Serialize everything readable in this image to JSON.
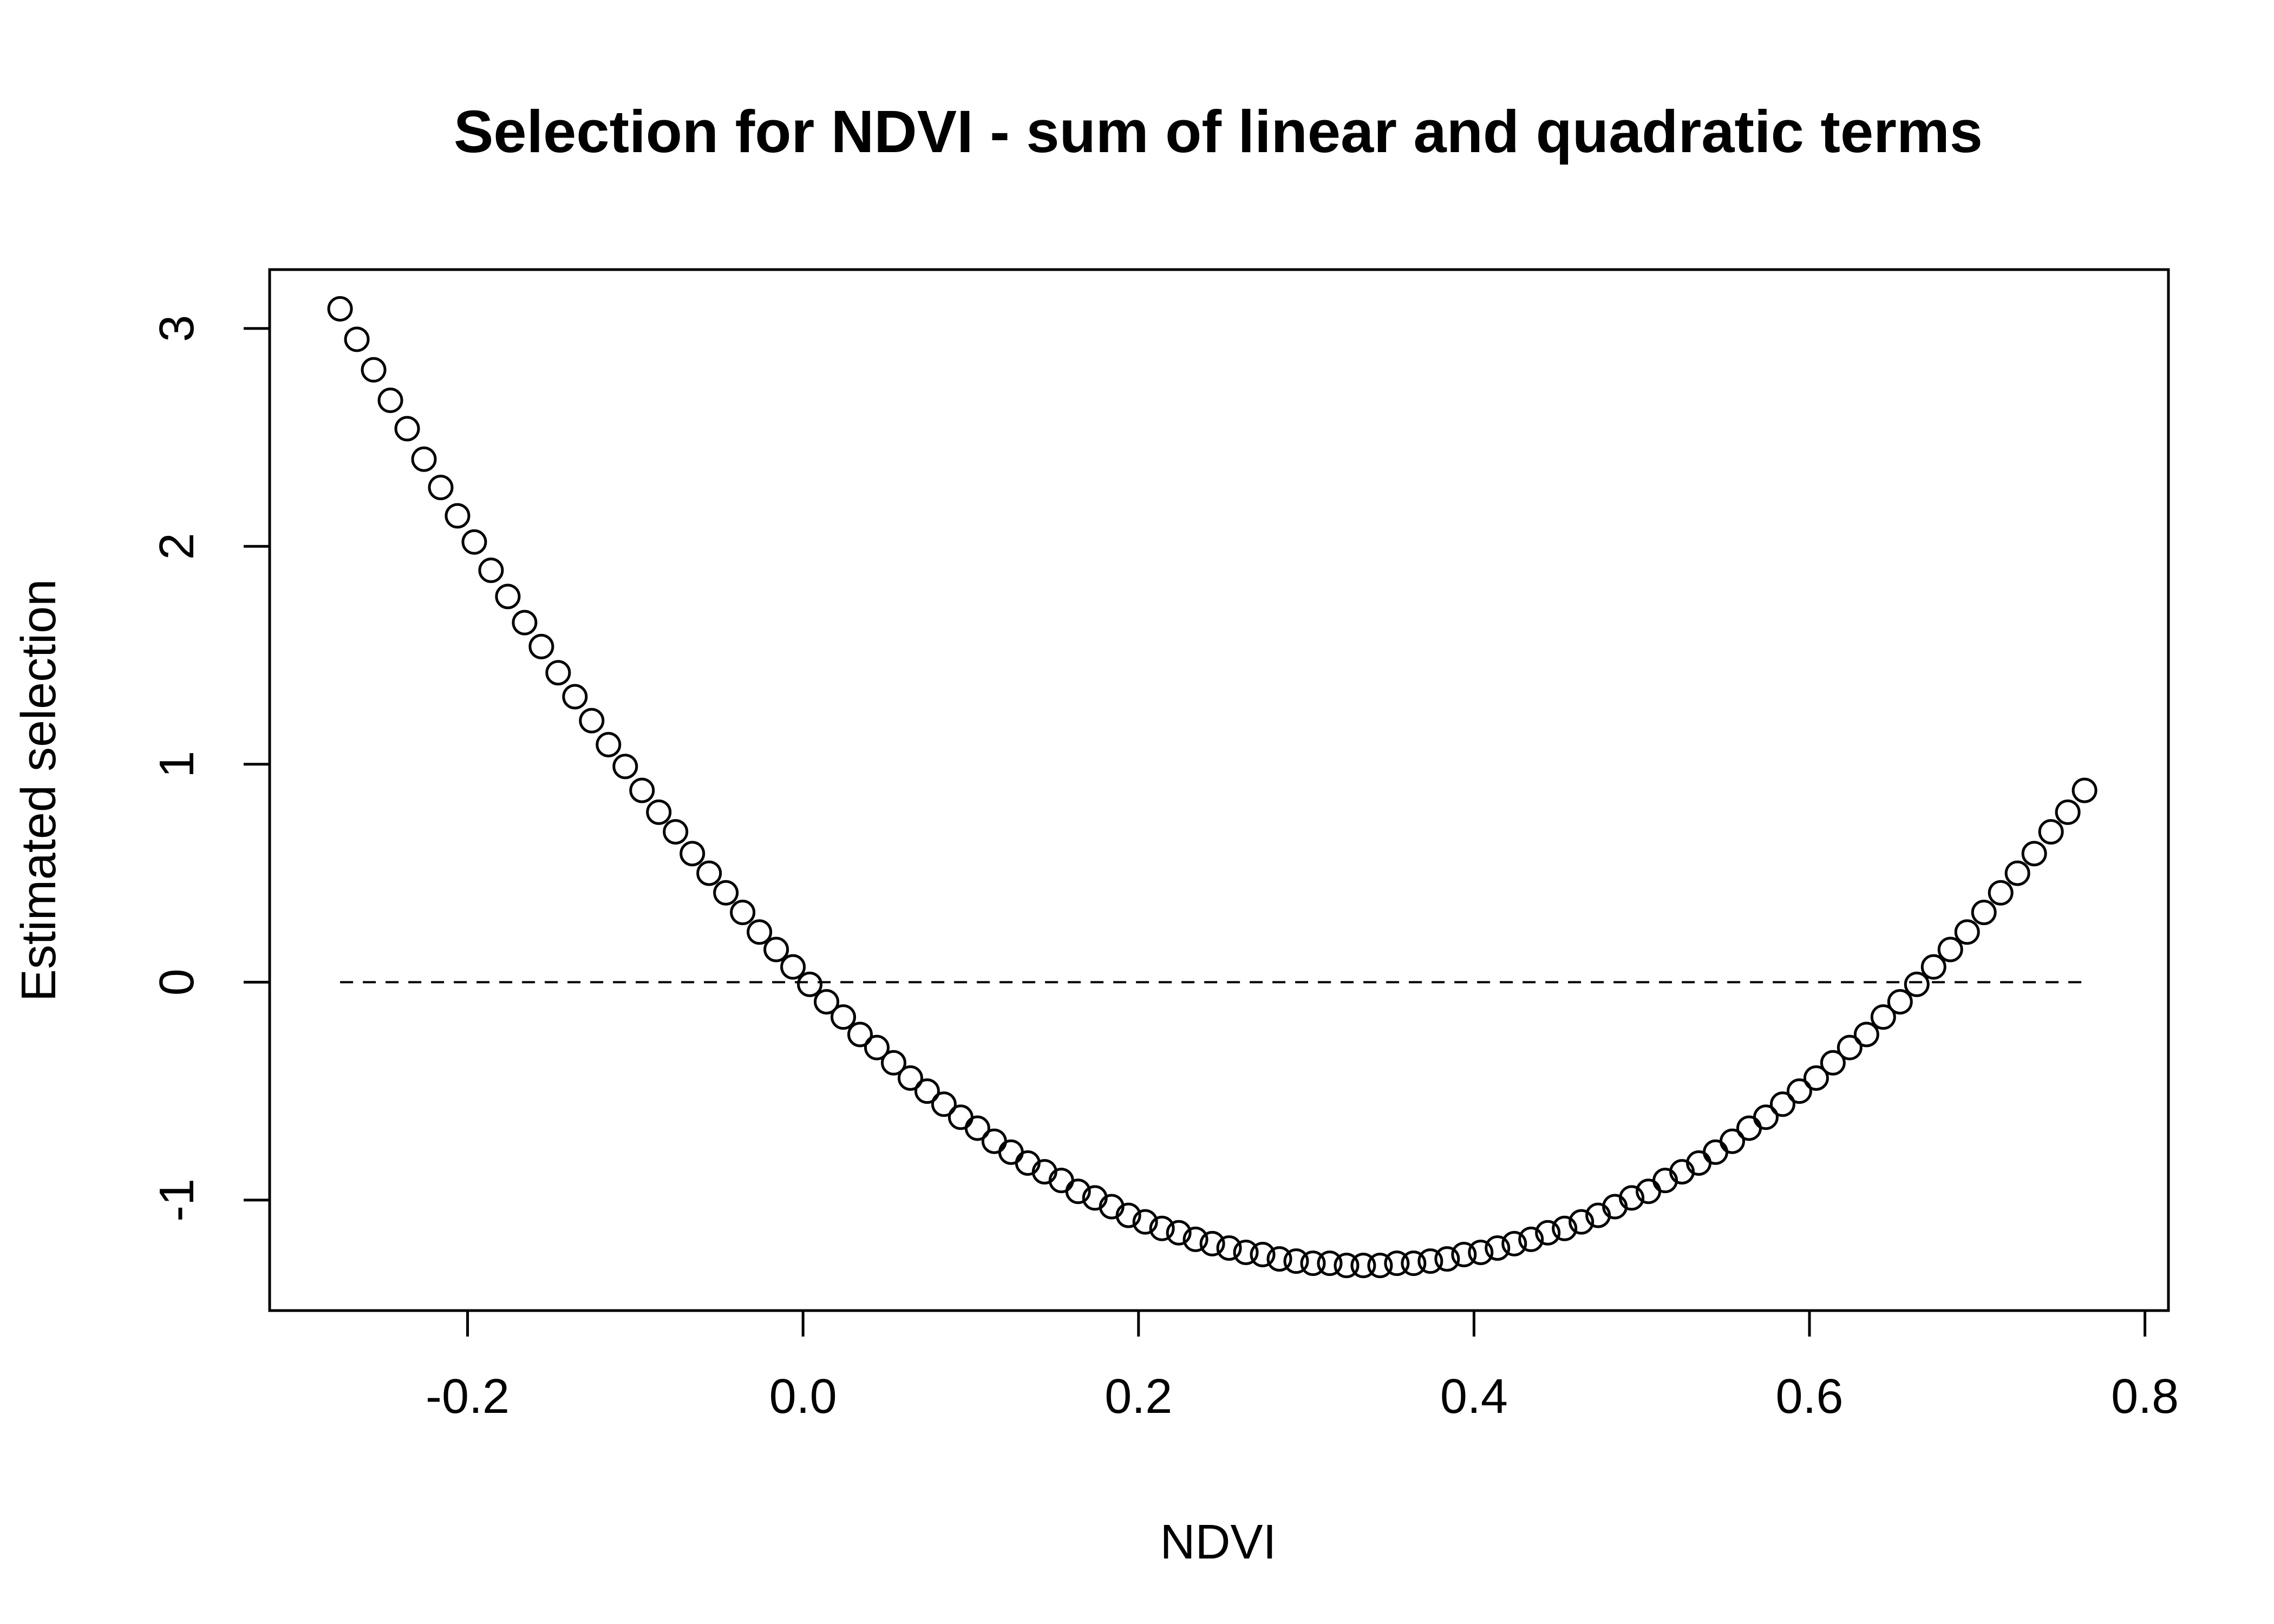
{
  "chart_data": {
    "type": "scatter",
    "title": "Selection for NDVI - sum of linear and quadratic terms",
    "x_label": "NDVI",
    "y_label": "Estimated selection",
    "series": [
      {
        "name": "Estimated selection",
        "color": "#000000",
        "marker": "open-circle",
        "x": [
          -0.276,
          -0.266,
          -0.256,
          -0.246,
          -0.236,
          -0.226,
          -0.216,
          -0.206,
          -0.196,
          -0.186,
          -0.176,
          -0.166,
          -0.156,
          -0.146,
          -0.136,
          -0.126,
          -0.116,
          -0.106,
          -0.096,
          -0.086,
          -0.076,
          -0.066,
          -0.056,
          -0.046,
          -0.036,
          -0.026,
          -0.016,
          -0.006,
          0.004,
          0.014,
          0.024,
          0.034,
          0.044,
          0.054,
          0.064,
          0.074,
          0.084,
          0.094,
          0.104,
          0.114,
          0.124,
          0.134,
          0.144,
          0.154,
          0.164,
          0.174,
          0.184,
          0.194,
          0.204,
          0.214,
          0.224,
          0.234,
          0.244,
          0.254,
          0.264,
          0.274,
          0.284,
          0.294,
          0.304,
          0.314,
          0.324,
          0.334,
          0.344,
          0.354,
          0.364,
          0.374,
          0.384,
          0.394,
          0.404,
          0.414,
          0.424,
          0.434,
          0.444,
          0.454,
          0.464,
          0.474,
          0.484,
          0.494,
          0.504,
          0.514,
          0.524,
          0.534,
          0.544,
          0.554,
          0.564,
          0.574,
          0.584,
          0.594,
          0.604,
          0.614,
          0.624,
          0.634,
          0.644,
          0.654,
          0.664,
          0.674,
          0.684,
          0.694,
          0.704,
          0.714,
          0.724,
          0.734,
          0.744,
          0.754,
          0.764
        ],
        "values": [
          3.09,
          2.95,
          2.81,
          2.67,
          2.54,
          2.4,
          2.27,
          2.14,
          2.02,
          1.89,
          1.77,
          1.65,
          1.54,
          1.42,
          1.31,
          1.2,
          1.09,
          0.99,
          0.88,
          0.78,
          0.69,
          0.59,
          0.5,
          0.41,
          0.32,
          0.23,
          0.15,
          0.07,
          -0.01,
          -0.09,
          -0.16,
          -0.24,
          -0.3,
          -0.37,
          -0.44,
          -0.5,
          -0.56,
          -0.62,
          -0.67,
          -0.73,
          -0.78,
          -0.83,
          -0.87,
          -0.91,
          -0.96,
          -0.99,
          -1.03,
          -1.07,
          -1.1,
          -1.13,
          -1.15,
          -1.18,
          -1.2,
          -1.22,
          -1.24,
          -1.25,
          -1.27,
          -1.28,
          -1.29,
          -1.29,
          -1.3,
          -1.3,
          -1.3,
          -1.29,
          -1.29,
          -1.28,
          -1.27,
          -1.25,
          -1.24,
          -1.22,
          -1.2,
          -1.18,
          -1.15,
          -1.13,
          -1.1,
          -1.07,
          -1.03,
          -0.99,
          -0.96,
          -0.91,
          -0.87,
          -0.83,
          -0.78,
          -0.73,
          -0.67,
          -0.62,
          -0.56,
          -0.5,
          -0.44,
          -0.37,
          -0.3,
          -0.24,
          -0.16,
          -0.09,
          -0.01,
          0.07,
          0.15,
          0.23,
          0.32,
          0.41,
          0.5,
          0.59,
          0.69,
          0.78,
          0.88
        ]
      }
    ],
    "reference_line": {
      "y": 0,
      "style": "dashed"
    },
    "xlim": [
      -0.318,
      0.814
    ],
    "xticks": [
      -0.2,
      {
        "value": 0,
        "label": "0.0"
      },
      0.2,
      0.4,
      0.6,
      0.8
    ],
    "ylim": [
      -1.507,
      3.27
    ],
    "yticks": [
      -1,
      0,
      1,
      2,
      3
    ],
    "grid": false
  }
}
